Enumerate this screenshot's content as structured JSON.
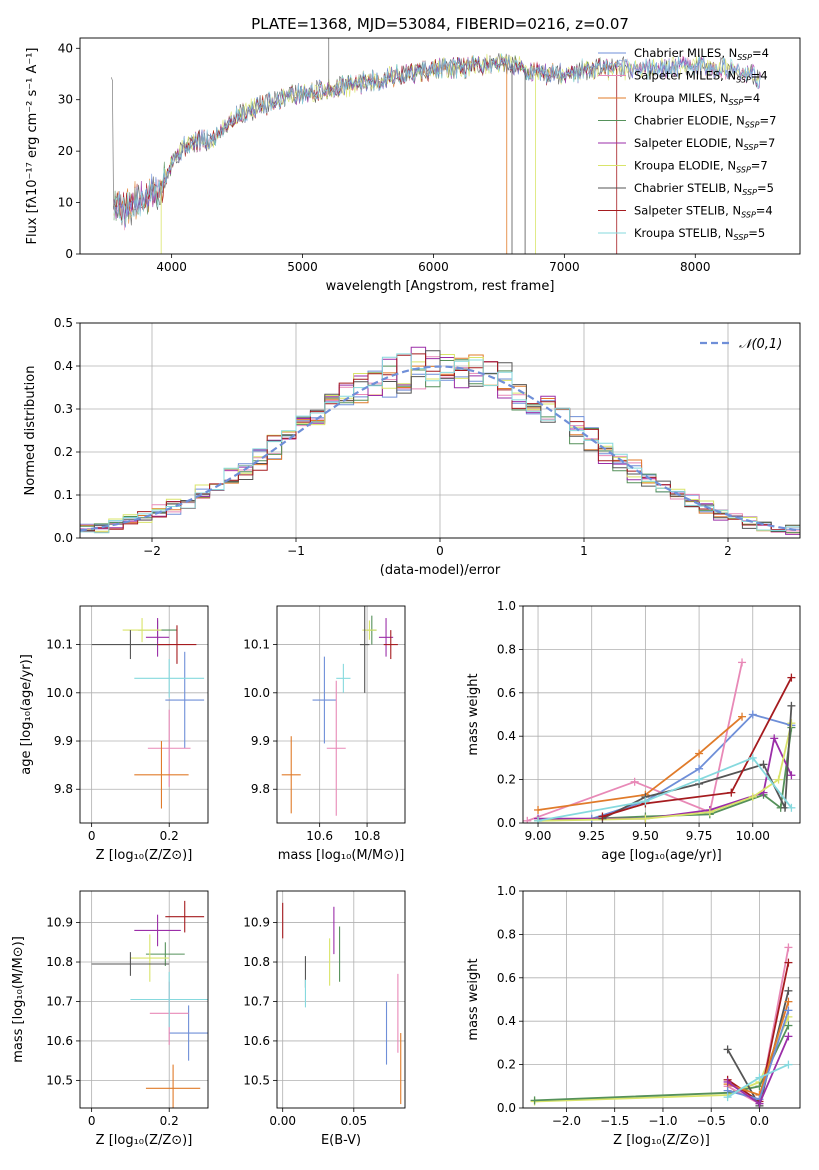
{
  "figure_title": "PLATE=1368, MJD=53084, FIBERID=0216, z=0.07",
  "colors": {
    "chabrier_miles": "#6f8fd8",
    "salpeter_miles": "#e889b7",
    "kroupa_miles": "#e07b2a",
    "chabrier_elodie": "#55915a",
    "salpeter_elodie": "#9b2ea8",
    "kroupa_elodie": "#d9e46a",
    "chabrier_stelib": "#555555",
    "salpeter_stelib": "#a51b1f",
    "kroupa_stelib": "#86d9de",
    "normal": "#6f8fd8",
    "spectrum": "#777777"
  },
  "chart_data": [
    {
      "id": "spectrum",
      "type": "line",
      "xlabel": "wavelength [Angstrom, rest frame]",
      "ylabel": "Flux [fλ10⁻¹⁷ erg cm⁻² s⁻¹ A⁻¹]",
      "xlim": [
        3300,
        8800
      ],
      "ylim": [
        0,
        42
      ],
      "xticks": [
        4000,
        5000,
        6000,
        7000,
        8000
      ],
      "yticks": [
        0,
        10,
        20,
        30,
        40
      ],
      "grid": false,
      "legend_position": "top-right",
      "legend": [
        {
          "key": "chabrier_miles",
          "label": "Chabrier MILES, N",
          "sub": "SSP",
          "tail": "=4"
        },
        {
          "key": "salpeter_miles",
          "label": "Salpeter MILES, N",
          "sub": "SSP",
          "tail": "=4"
        },
        {
          "key": "kroupa_miles",
          "label": "Kroupa MILES, N",
          "sub": "SSP",
          "tail": "=4"
        },
        {
          "key": "chabrier_elodie",
          "label": "Chabrier ELODIE, N",
          "sub": "SSP",
          "tail": "=7"
        },
        {
          "key": "salpeter_elodie",
          "label": "Salpeter ELODIE, N",
          "sub": "SSP",
          "tail": "=7"
        },
        {
          "key": "kroupa_elodie",
          "label": "Kroupa ELODIE, N",
          "sub": "SSP",
          "tail": "=7"
        },
        {
          "key": "chabrier_stelib",
          "label": "Chabrier STELIB, N",
          "sub": "SSP",
          "tail": "=5"
        },
        {
          "key": "salpeter_stelib",
          "label": "Salpeter STELIB, N",
          "sub": "SSP",
          "tail": "=4"
        },
        {
          "key": "kroupa_stelib",
          "label": "Kroupa STELIB, N",
          "sub": "SSP",
          "tail": "=5"
        }
      ],
      "continuum": [
        [
          3550,
          10
        ],
        [
          3650,
          9
        ],
        [
          3800,
          11
        ],
        [
          3900,
          12
        ],
        [
          4000,
          18
        ],
        [
          4100,
          21
        ],
        [
          4200,
          22
        ],
        [
          4300,
          22
        ],
        [
          4400,
          25
        ],
        [
          4500,
          27
        ],
        [
          4600,
          28
        ],
        [
          4700,
          29
        ],
        [
          4800,
          30
        ],
        [
          4900,
          31
        ],
        [
          5000,
          31
        ],
        [
          5200,
          32
        ],
        [
          5400,
          33
        ],
        [
          5600,
          34
        ],
        [
          5800,
          35
        ],
        [
          6000,
          36
        ],
        [
          6200,
          36
        ],
        [
          6400,
          37
        ],
        [
          6600,
          37
        ],
        [
          6800,
          35
        ],
        [
          7000,
          35
        ],
        [
          7200,
          36
        ],
        [
          7400,
          36
        ],
        [
          7600,
          36
        ],
        [
          7800,
          36
        ],
        [
          8000,
          37
        ],
        [
          8200,
          36
        ],
        [
          8400,
          35
        ],
        [
          8500,
          34
        ]
      ]
    },
    {
      "id": "residuals",
      "type": "histogram",
      "xlabel": "(data-model)/error",
      "ylabel": "Normed distribution",
      "xlim": [
        -2.5,
        2.5
      ],
      "ylim": [
        0,
        0.5
      ],
      "xticks": [
        -2,
        -1,
        0,
        1,
        2
      ],
      "yticks": [
        0.0,
        0.1,
        0.2,
        0.3,
        0.4,
        0.5
      ],
      "grid": true,
      "legend_position": "top-right",
      "normal_label": "𝒩(0,1)",
      "bin_width": 0.1
    },
    {
      "id": "age_vs_Z",
      "type": "scatter",
      "xlabel": "Z [log₁₀(Z/Z⊙)]",
      "ylabel": "age  [log₁₀(age/yr)]",
      "xlim": [
        -0.03,
        0.3
      ],
      "ylim": [
        9.73,
        10.18
      ],
      "xticks": [
        0.0,
        0.2
      ],
      "yticks": [
        9.8,
        9.9,
        10.0,
        10.1
      ],
      "points": [
        {
          "key": "chabrier_miles",
          "x": 0.24,
          "xerr": 0.05,
          "y": 9.985,
          "yerr": 0.1
        },
        {
          "key": "salpeter_miles",
          "x": 0.2,
          "xerr": 0.055,
          "y": 9.885,
          "yerr": 0.08
        },
        {
          "key": "kroupa_miles",
          "x": 0.18,
          "xerr": 0.07,
          "y": 9.83,
          "yerr": 0.07
        },
        {
          "key": "chabrier_elodie",
          "x": 0.17,
          "xerr": 0.05,
          "y": 10.13,
          "yerr": 0.02
        },
        {
          "key": "salpeter_elodie",
          "x": 0.17,
          "xerr": 0.03,
          "y": 10.115,
          "yerr": 0.04
        },
        {
          "key": "kroupa_elodie",
          "x": 0.13,
          "xerr": 0.05,
          "y": 10.13,
          "yerr": 0.025
        },
        {
          "key": "chabrier_stelib",
          "x": 0.1,
          "xerr": 0.1,
          "y": 10.1,
          "yerr": 0.03
        },
        {
          "key": "salpeter_stelib",
          "x": 0.22,
          "xerr": 0.05,
          "y": 10.1,
          "yerr": 0.04
        },
        {
          "key": "kroupa_stelib",
          "x": 0.2,
          "xerr": 0.09,
          "y": 10.03,
          "yerr": 0.04
        }
      ]
    },
    {
      "id": "age_vs_mass",
      "type": "scatter",
      "xlabel": "mass [log₁₀(M/M⊙)]",
      "ylabel": "",
      "xlim": [
        10.42,
        10.96
      ],
      "ylim": [
        9.73,
        10.18
      ],
      "xticks": [
        10.6,
        10.8
      ],
      "yticks": [
        9.8,
        9.9,
        10.0,
        10.1
      ],
      "points": [
        {
          "key": "chabrier_miles",
          "x": 10.62,
          "xerr": 0.05,
          "y": 9.985,
          "yerr": 0.09
        },
        {
          "key": "salpeter_miles",
          "x": 10.67,
          "xerr": 0.04,
          "y": 9.885,
          "yerr": 0.14
        },
        {
          "key": "kroupa_miles",
          "x": 10.48,
          "xerr": 0.04,
          "y": 9.83,
          "yerr": 0.08
        },
        {
          "key": "chabrier_elodie",
          "x": 10.82,
          "xerr": 0.02,
          "y": 10.13,
          "yerr": 0.03
        },
        {
          "key": "salpeter_elodie",
          "x": 10.88,
          "xerr": 0.03,
          "y": 10.115,
          "yerr": 0.04
        },
        {
          "key": "kroupa_elodie",
          "x": 10.81,
          "xerr": 0.03,
          "y": 10.13,
          "yerr": 0.02
        },
        {
          "key": "chabrier_stelib",
          "x": 10.79,
          "xerr": 0.02,
          "y": 10.1,
          "yerr": 0.1
        },
        {
          "key": "salpeter_stelib",
          "x": 10.9,
          "xerr": 0.03,
          "y": 10.1,
          "yerr": 0.03
        },
        {
          "key": "kroupa_stelib",
          "x": 10.7,
          "xerr": 0.03,
          "y": 10.03,
          "yerr": 0.03
        }
      ]
    },
    {
      "id": "mass_weight_vs_age",
      "type": "line",
      "xlabel": "age  [log₁₀(age/yr)]",
      "ylabel": "mass weight",
      "xlim": [
        8.93,
        10.22
      ],
      "ylim": [
        0,
        1.0
      ],
      "xticks": [
        9.0,
        9.25,
        9.5,
        9.75,
        10.0
      ],
      "xtick_labels": [
        "9.00",
        "9.25",
        "9.50",
        "9.75",
        "10.00"
      ],
      "yticks": [
        0.0,
        0.2,
        0.4,
        0.6,
        0.8,
        1.0
      ],
      "grid": true,
      "series": [
        {
          "key": "chabrier_miles",
          "x": [
            9.25,
            9.5,
            9.75,
            10.0,
            10.18
          ],
          "y": [
            0.02,
            0.1,
            0.25,
            0.5,
            0.45
          ]
        },
        {
          "key": "salpeter_miles",
          "x": [
            8.95,
            9.45,
            9.8,
            9.95
          ],
          "y": [
            0.01,
            0.19,
            0.05,
            0.74
          ]
        },
        {
          "key": "kroupa_miles",
          "x": [
            9.0,
            9.5,
            9.75,
            9.95
          ],
          "y": [
            0.06,
            0.13,
            0.32,
            0.49
          ]
        },
        {
          "key": "chabrier_elodie",
          "x": [
            9.0,
            9.5,
            9.8,
            10.05,
            10.13,
            10.18
          ],
          "y": [
            0.01,
            0.03,
            0.04,
            0.13,
            0.07,
            0.44
          ]
        },
        {
          "key": "salpeter_elodie",
          "x": [
            9.0,
            9.5,
            9.8,
            10.05,
            10.1,
            10.18
          ],
          "y": [
            0.02,
            0.02,
            0.06,
            0.14,
            0.39,
            0.22
          ]
        },
        {
          "key": "kroupa_elodie",
          "x": [
            9.0,
            9.5,
            9.8,
            10.0,
            10.12,
            10.18
          ],
          "y": [
            0.01,
            0.02,
            0.05,
            0.12,
            0.2,
            0.46
          ]
        },
        {
          "key": "chabrier_stelib",
          "x": [
            9.3,
            9.5,
            9.75,
            10.05,
            10.15,
            10.18
          ],
          "y": [
            0.02,
            0.12,
            0.18,
            0.27,
            0.07,
            0.54
          ]
        },
        {
          "key": "salpeter_stelib",
          "x": [
            9.3,
            9.5,
            9.9,
            10.18
          ],
          "y": [
            0.03,
            0.09,
            0.14,
            0.67
          ]
        },
        {
          "key": "kroupa_stelib",
          "x": [
            9.0,
            9.5,
            9.75,
            10.0,
            10.18
          ],
          "y": [
            0.01,
            0.1,
            0.2,
            0.3,
            0.07
          ]
        }
      ]
    },
    {
      "id": "mass_vs_Z",
      "type": "scatter",
      "xlabel": "Z [log₁₀(Z/Z⊙)]",
      "ylabel": "mass [log₁₀(M/M⊙)]",
      "xlim": [
        -0.03,
        0.3
      ],
      "ylim": [
        10.43,
        10.98
      ],
      "xticks": [
        0.0,
        0.2
      ],
      "yticks": [
        10.5,
        10.6,
        10.7,
        10.8,
        10.9
      ],
      "points": [
        {
          "key": "chabrier_miles",
          "x": 0.25,
          "xerr": 0.05,
          "y": 10.62,
          "yerr": 0.07
        },
        {
          "key": "salpeter_miles",
          "x": 0.2,
          "xerr": 0.05,
          "y": 10.67,
          "yerr": 0.08
        },
        {
          "key": "kroupa_miles",
          "x": 0.21,
          "xerr": 0.07,
          "y": 10.48,
          "yerr": 0.06
        },
        {
          "key": "chabrier_elodie",
          "x": 0.19,
          "xerr": 0.05,
          "y": 10.82,
          "yerr": 0.03
        },
        {
          "key": "salpeter_elodie",
          "x": 0.17,
          "xerr": 0.06,
          "y": 10.88,
          "yerr": 0.04
        },
        {
          "key": "kroupa_elodie",
          "x": 0.15,
          "xerr": 0.05,
          "y": 10.81,
          "yerr": 0.06
        },
        {
          "key": "chabrier_stelib",
          "x": 0.1,
          "xerr": 0.1,
          "y": 10.795,
          "yerr": 0.03
        },
        {
          "key": "salpeter_stelib",
          "x": 0.24,
          "xerr": 0.05,
          "y": 10.915,
          "yerr": 0.04
        },
        {
          "key": "kroupa_stelib",
          "x": 0.2,
          "xerr": 0.1,
          "y": 10.705,
          "yerr": 0.07
        }
      ]
    },
    {
      "id": "mass_vs_EBV",
      "type": "scatter",
      "xlabel": "E(B-V)",
      "ylabel": "",
      "xlim": [
        -0.004,
        0.086
      ],
      "ylim": [
        10.43,
        10.98
      ],
      "xticks": [
        0.0,
        0.05
      ],
      "xtick_labels": [
        "0.00",
        "0.05"
      ],
      "yticks": [
        10.5,
        10.6,
        10.7,
        10.8,
        10.9
      ],
      "points": [
        {
          "key": "chabrier_miles",
          "x": 0.073,
          "xerr": 0,
          "y": 10.62,
          "yerr": 0.08
        },
        {
          "key": "salpeter_miles",
          "x": 0.081,
          "xerr": 0,
          "y": 10.67,
          "yerr": 0.1
        },
        {
          "key": "kroupa_miles",
          "x": 0.083,
          "xerr": 0,
          "y": 10.53,
          "yerr": 0.09
        },
        {
          "key": "chabrier_elodie",
          "x": 0.04,
          "xerr": 0,
          "y": 10.82,
          "yerr": 0.07
        },
        {
          "key": "salpeter_elodie",
          "x": 0.036,
          "xerr": 0,
          "y": 10.88,
          "yerr": 0.06
        },
        {
          "key": "kroupa_elodie",
          "x": 0.033,
          "xerr": 0,
          "y": 10.8,
          "yerr": 0.06
        },
        {
          "key": "chabrier_stelib",
          "x": 0.016,
          "xerr": 0,
          "y": 10.775,
          "yerr": 0.04
        },
        {
          "key": "salpeter_stelib",
          "x": 0.0,
          "xerr": 0,
          "y": 10.905,
          "yerr": 0.045
        },
        {
          "key": "kroupa_stelib",
          "x": 0.016,
          "xerr": 0,
          "y": 10.72,
          "yerr": 0.035
        }
      ]
    },
    {
      "id": "mass_weight_vs_Z",
      "type": "line",
      "xlabel": "Z [log₁₀(Z/Z⊙)]",
      "ylabel": "mass weight",
      "xlim": [
        -2.45,
        0.42
      ],
      "ylim": [
        0,
        1.0
      ],
      "xticks": [
        -2.0,
        -1.5,
        -1.0,
        -0.5,
        0.0
      ],
      "xtick_labels": [
        "−2.0",
        "−1.5",
        "−1.0",
        "−0.5",
        "0.0"
      ],
      "yticks": [
        0.0,
        0.2,
        0.4,
        0.6,
        0.8,
        1.0
      ],
      "grid": true,
      "series": [
        {
          "key": "kroupa_elodie",
          "x": [
            -2.33,
            -0.33,
            0.0,
            0.3
          ],
          "y": [
            0.03,
            0.06,
            0.12,
            0.42
          ]
        },
        {
          "key": "chabrier_elodie",
          "x": [
            -2.33,
            -0.33,
            0.0,
            0.3
          ],
          "y": [
            0.035,
            0.07,
            0.1,
            0.38
          ]
        },
        {
          "key": "salpeter_miles",
          "x": [
            -0.33,
            0.0,
            0.3
          ],
          "y": [
            0.1,
            0.02,
            0.74
          ]
        },
        {
          "key": "salpeter_stelib",
          "x": [
            -0.33,
            0.0,
            0.3
          ],
          "y": [
            0.13,
            0.03,
            0.67
          ]
        },
        {
          "key": "chabrier_stelib",
          "x": [
            -0.33,
            0.0,
            0.3
          ],
          "y": [
            0.27,
            0.01,
            0.54
          ]
        },
        {
          "key": "kroupa_miles",
          "x": [
            -0.33,
            0.0,
            0.3
          ],
          "y": [
            0.11,
            0.06,
            0.49
          ]
        },
        {
          "key": "chabrier_miles",
          "x": [
            -0.33,
            0.0,
            0.3
          ],
          "y": [
            0.08,
            0.04,
            0.45
          ]
        },
        {
          "key": "salpeter_elodie",
          "x": [
            -0.33,
            0.0,
            0.3
          ],
          "y": [
            0.12,
            0.02,
            0.33
          ]
        },
        {
          "key": "kroupa_stelib",
          "x": [
            -0.33,
            0.0,
            0.3
          ],
          "y": [
            0.05,
            0.14,
            0.2
          ]
        }
      ]
    }
  ]
}
